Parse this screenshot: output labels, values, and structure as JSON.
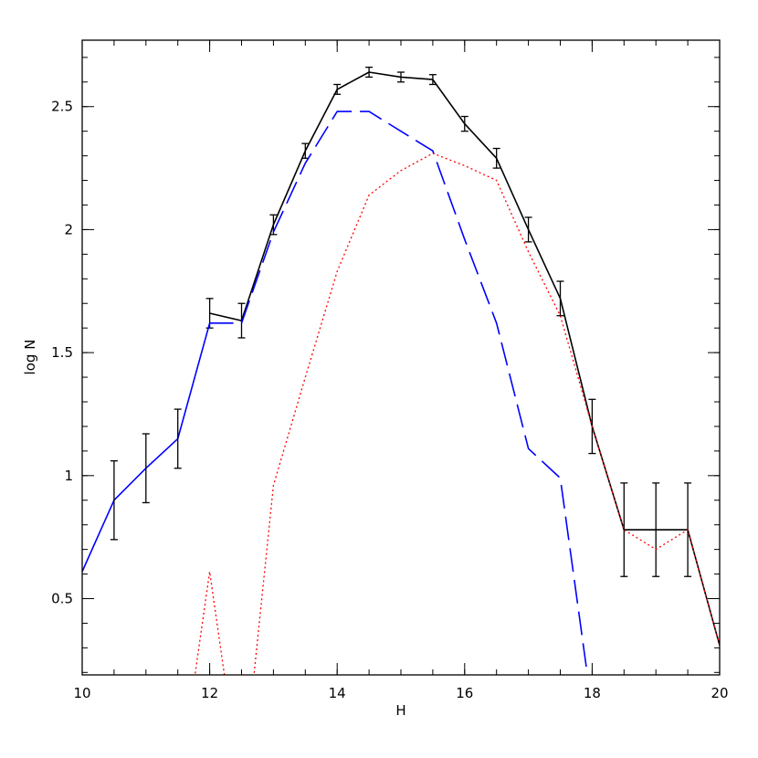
{
  "chart_data": {
    "type": "line",
    "title": "",
    "xlabel": "H",
    "ylabel": "log N",
    "xlim": [
      10,
      20
    ],
    "ylim": [
      0.19,
      2.77
    ],
    "grid": false,
    "legend": "none",
    "x_ticks": [
      {
        "value": 10,
        "label": "10"
      },
      {
        "value": 12,
        "label": "12"
      },
      {
        "value": 14,
        "label": "14"
      },
      {
        "value": 16,
        "label": "16"
      },
      {
        "value": 18,
        "label": "18"
      },
      {
        "value": 20,
        "label": "20"
      }
    ],
    "y_ticks": [
      {
        "value": 0.5,
        "label": "0.5"
      },
      {
        "value": 1,
        "label": "1"
      },
      {
        "value": 1.5,
        "label": "1.5"
      },
      {
        "value": 2,
        "label": "2"
      },
      {
        "value": 2.5,
        "label": "2.5"
      }
    ],
    "x_minor_step": 0.5,
    "y_minor_step": 0.1,
    "series": [
      {
        "style": "solid",
        "color": "#000000",
        "x": [
          12,
          12.5,
          13,
          13.5,
          14,
          14.5,
          15,
          15.5,
          16,
          16.5,
          17,
          17.5,
          18,
          18.5,
          19,
          19.5,
          20
        ],
        "y": [
          1.66,
          1.63,
          2.02,
          2.32,
          2.57,
          2.64,
          2.62,
          2.61,
          2.43,
          2.29,
          2.0,
          1.72,
          1.2,
          0.78,
          0.78,
          0.78,
          0.31
        ],
        "error": [
          0.06,
          0.07,
          0.04,
          0.03,
          0.02,
          0.02,
          0.02,
          0.02,
          0.03,
          0.04,
          0.05,
          0.07,
          0.11,
          0.19,
          0.19,
          0.19,
          0
        ]
      },
      {
        "style": "dashed",
        "color": "#0000ff",
        "x": [
          12,
          12.5,
          13,
          13.5,
          14,
          14.5,
          15,
          15.5,
          16,
          16.5,
          17,
          17.5,
          18
        ],
        "y": [
          1.62,
          1.62,
          1.99,
          2.27,
          2.48,
          2.48,
          2.4,
          2.32,
          1.96,
          1.62,
          1.11,
          0.99,
          0.05
        ]
      },
      {
        "style": "solid",
        "color": "#0000ff",
        "x": [
          10,
          10.5,
          11,
          11.5,
          12
        ],
        "y": [
          0.61,
          0.9,
          1.03,
          1.15,
          1.62
        ],
        "error": [
          0,
          0.16,
          0.14,
          0.12,
          0
        ]
      },
      {
        "style": "dotted",
        "color": "#ff0000",
        "x": [
          11.5,
          12,
          12.5,
          13,
          13.5,
          14,
          14.5,
          15,
          15.5,
          16,
          16.5,
          17,
          17.5,
          18,
          18.5,
          19,
          19.5,
          20
        ],
        "y": [
          -0.3,
          0.61,
          -0.3,
          0.96,
          1.4,
          1.83,
          2.14,
          2.24,
          2.31,
          2.26,
          2.2,
          1.91,
          1.65,
          1.2,
          0.78,
          0.7,
          0.78,
          0.31
        ]
      }
    ]
  }
}
